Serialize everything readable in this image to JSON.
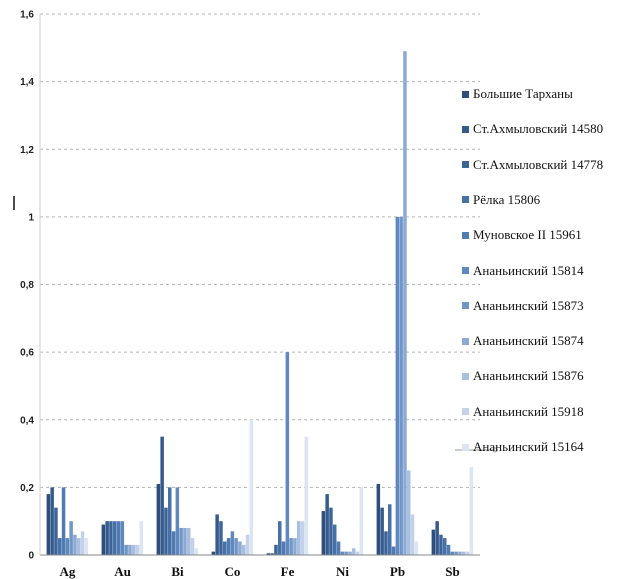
{
  "chart_data": {
    "type": "bar",
    "title": "",
    "xlabel": "",
    "ylabel": "",
    "ylim": [
      0,
      1.6
    ],
    "yticks": [
      "0",
      "0,2",
      "0,4",
      "0,6",
      "0,8",
      "1",
      "1,2",
      "1,4",
      "1,6"
    ],
    "grid": true,
    "legend_position": "right",
    "categories": [
      "Ag",
      "Au",
      "Bi",
      "Co",
      "Fe",
      "Ni",
      "Pb",
      "Sb"
    ],
    "series": [
      {
        "name": "Большие Тарханы",
        "color": "#2e4e7e",
        "values": [
          0.18,
          0.09,
          0.21,
          0.01,
          0.005,
          0.13,
          0.21,
          0.075
        ]
      },
      {
        "name": "Ст.Ахмыловский 14580",
        "color": "#355a8c",
        "values": [
          0.2,
          0.1,
          0.35,
          0.12,
          0.005,
          0.18,
          0.14,
          0.1
        ]
      },
      {
        "name": "Ст.Ахмыловский 14778",
        "color": "#3d6499",
        "values": [
          0.14,
          0.1,
          0.14,
          0.1,
          0.03,
          0.14,
          0.07,
          0.06
        ]
      },
      {
        "name": "Рёлка 15806",
        "color": "#4670a8",
        "values": [
          0.05,
          0.1,
          0.2,
          0.04,
          0.1,
          0.09,
          0.15,
          0.05
        ]
      },
      {
        "name": "Муновское II 15961",
        "color": "#507ab2",
        "values": [
          0.2,
          0.1,
          0.07,
          0.05,
          0.04,
          0.04,
          0.025,
          0.03
        ]
      },
      {
        "name": "Ананьинский 15814",
        "color": "#5f88be",
        "values": [
          0.05,
          0.1,
          0.2,
          0.07,
          0.6,
          0.01,
          1.0,
          0.01
        ]
      },
      {
        "name": "Ананьинский 15873",
        "color": "#7097c8",
        "values": [
          0.1,
          0.03,
          0.08,
          0.05,
          0.05,
          0.01,
          1.0,
          0.01
        ]
      },
      {
        "name": "Ананьинский 15874",
        "color": "#8ba9d2",
        "values": [
          0.06,
          0.03,
          0.08,
          0.04,
          0.05,
          0.01,
          1.49,
          0.01
        ]
      },
      {
        "name": "Ананьинский 15876",
        "color": "#a8bfdf",
        "values": [
          0.05,
          0.03,
          0.08,
          0.03,
          0.1,
          0.02,
          0.25,
          0.01
        ]
      },
      {
        "name": "Ананьинский 15918",
        "color": "#c3d2ea",
        "values": [
          0.07,
          0.03,
          0.05,
          0.06,
          0.1,
          0.01,
          0.12,
          0.01
        ]
      },
      {
        "name": "Ананьинский 15164",
        "color": "#dce5f3",
        "values": [
          0.05,
          0.1,
          0.02,
          0.4,
          0.35,
          0.2,
          0.04,
          0.26
        ]
      }
    ]
  }
}
